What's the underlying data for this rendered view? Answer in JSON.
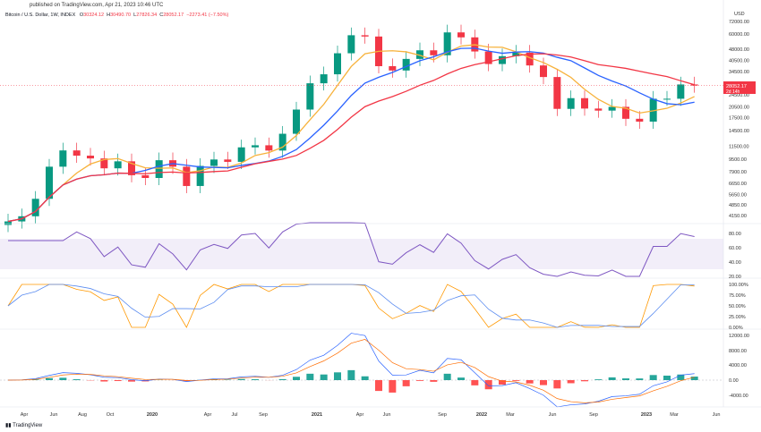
{
  "published": "published on TradingView.com, Apr 21, 2023 10:46 UTC",
  "symbol": "Bitcoin / U.S. Dollar, 1W, INDEX",
  "ohlc": {
    "o_label": "O",
    "o": "30324.12",
    "h_label": "H",
    "h": "30490.70",
    "l_label": "L",
    "l": "27826.34",
    "c_label": "C",
    "c": "28052.17",
    "chg": "−2273.41 (−7.50%)"
  },
  "currency": "USD",
  "last_price": {
    "value": "28052.17",
    "countdown": "2d 14h"
  },
  "footer": "TradingView",
  "colors": {
    "up": "#089981",
    "down": "#f23645",
    "ma_fast": "#f7b23b",
    "ma_mid": "#2962ff",
    "ma_slow": "#f23645",
    "rsi": "#7e57c2",
    "stoch_k": "#ff9800",
    "stoch_d": "#5b8cf0"
  },
  "chart_data": {
    "type": "candlestick",
    "scale": "log",
    "x": [
      "2019-02",
      "2019-03",
      "2019-04",
      "2019-05",
      "2019-06",
      "2019-07",
      "2019-08",
      "2019-09",
      "2019-10",
      "2019-11",
      "2019-12",
      "2020-01",
      "2020-02",
      "2020-03",
      "2020-04",
      "2020-05",
      "2020-06",
      "2020-07",
      "2020-08",
      "2020-09",
      "2020-10",
      "2020-11",
      "2020-12",
      "2021-01",
      "2021-02",
      "2021-03",
      "2021-04",
      "2021-05",
      "2021-06",
      "2021-07",
      "2021-08",
      "2021-09",
      "2021-10",
      "2021-11",
      "2021-12",
      "2022-01",
      "2022-02",
      "2022-03",
      "2022-04",
      "2022-05",
      "2022-06",
      "2022-07",
      "2022-08",
      "2022-09",
      "2022-10",
      "2022-11",
      "2022-12",
      "2023-01",
      "2023-02",
      "2023-03",
      "2023-04"
    ],
    "close": [
      3800,
      4100,
      5300,
      8500,
      10800,
      10000,
      9600,
      8300,
      9200,
      7500,
      7200,
      9350,
      8500,
      6400,
      8600,
      9450,
      9130,
      11300,
      11650,
      10780,
      13800,
      19700,
      29000,
      33100,
      45100,
      58800,
      57700,
      37300,
      35000,
      41500,
      47100,
      43800,
      61300,
      57000,
      46300,
      38500,
      43200,
      45500,
      37700,
      31800,
      19900,
      23300,
      20000,
      19400,
      20500,
      17200,
      16500,
      23100,
      23100,
      28500,
      28052
    ],
    "price_ticks": [
      72000,
      60000,
      48000,
      40500,
      34500,
      24500,
      20500,
      17500,
      14500,
      11500,
      9500,
      7900,
      6650,
      5650,
      4850,
      4150
    ],
    "x_ticks": [
      "Apr",
      "Jun",
      "Aug",
      "Oct",
      "2020",
      "Apr",
      "Jul",
      "Sep",
      "2021",
      "Apr",
      "Jun",
      "Sep",
      "2022",
      "Mar",
      "Jun",
      "Sep",
      "2023",
      "Mar",
      "Jun"
    ],
    "rsi_ticks": [
      "80.00",
      "60.00",
      "40.00",
      "20.00"
    ],
    "stoch_ticks": [
      "100.00%",
      "75.00%",
      "50.00%",
      "25.00%",
      "0.00%"
    ],
    "macd_ticks": [
      "12000.00",
      "8000.00",
      "4000.00",
      "0.00",
      "-4000.00",
      "-8000.00"
    ]
  }
}
